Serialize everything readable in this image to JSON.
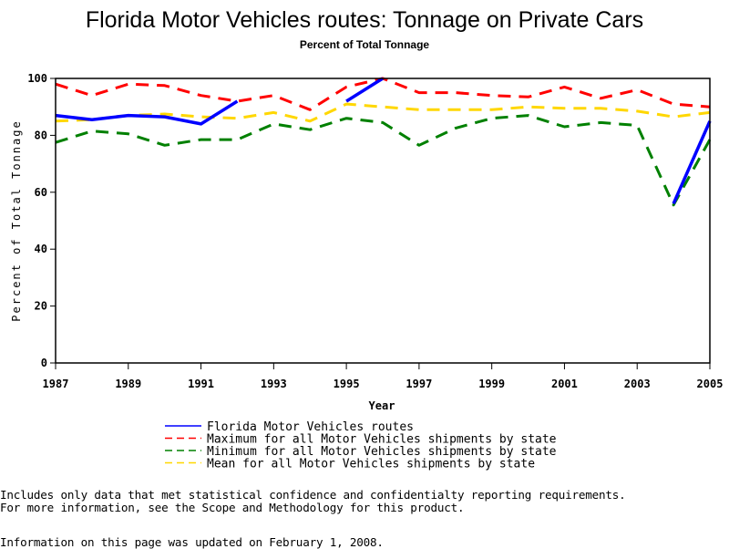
{
  "chart_data": {
    "type": "line",
    "title": "Florida Motor Vehicles routes: Tonnage on Private Cars",
    "subtitle": "Percent of Total Tonnage",
    "xlabel": "Year",
    "ylabel": "Percent of Total Tonnage",
    "xlim": [
      1987,
      2005
    ],
    "ylim": [
      0,
      100
    ],
    "x_ticks": [
      "1987",
      "1989",
      "1991",
      "1993",
      "1995",
      "1997",
      "1999",
      "2001",
      "2003",
      "2005"
    ],
    "y_ticks": [
      "0",
      "20",
      "40",
      "60",
      "80",
      "100"
    ],
    "grid": false,
    "legend_position": "bottom",
    "x": [
      1987,
      1988,
      1989,
      1990,
      1991,
      1992,
      1993,
      1994,
      1995,
      1996,
      1997,
      1998,
      1999,
      2000,
      2001,
      2002,
      2003,
      2004,
      2005
    ],
    "series": [
      {
        "name": "Florida Motor Vehicles routes",
        "color": "#0000ff",
        "style": "solid",
        "values": [
          87,
          85.5,
          87,
          86.5,
          84,
          92,
          null,
          null,
          92,
          100,
          null,
          null,
          null,
          null,
          null,
          null,
          null,
          56,
          85
        ]
      },
      {
        "name": "Maximum for all Motor Vehicles shipments by state",
        "color": "#ff0000",
        "style": "dashed",
        "values": [
          98,
          94,
          98,
          97.5,
          94,
          92,
          94,
          89,
          97,
          100,
          95,
          95,
          94,
          93.5,
          97,
          93,
          96,
          91,
          90
        ]
      },
      {
        "name": "Minimum for all Motor Vehicles shipments by state",
        "color": "#008000",
        "style": "dashed",
        "values": [
          77.5,
          81.5,
          80.5,
          76.5,
          78.5,
          78.5,
          84,
          82,
          86,
          84.5,
          76.5,
          82.5,
          86,
          87,
          83,
          84.5,
          83.5,
          55.5,
          78.5
        ]
      },
      {
        "name": "Mean for all Motor Vehicles shipments by state",
        "color": "#ffd700",
        "style": "dashed",
        "values": [
          85,
          85.5,
          87,
          87.5,
          86.5,
          86,
          88,
          85,
          91,
          90,
          89,
          89,
          89,
          90,
          89.5,
          89.5,
          88.5,
          86.5,
          88
        ]
      }
    ]
  },
  "footnotes": {
    "line1": "Includes only data that met statistical confidence and confidentialty reporting requirements.",
    "line2": "For more information, see the Scope and Methodology for this product.",
    "updated": "Information on this page was updated on February 1, 2008."
  }
}
